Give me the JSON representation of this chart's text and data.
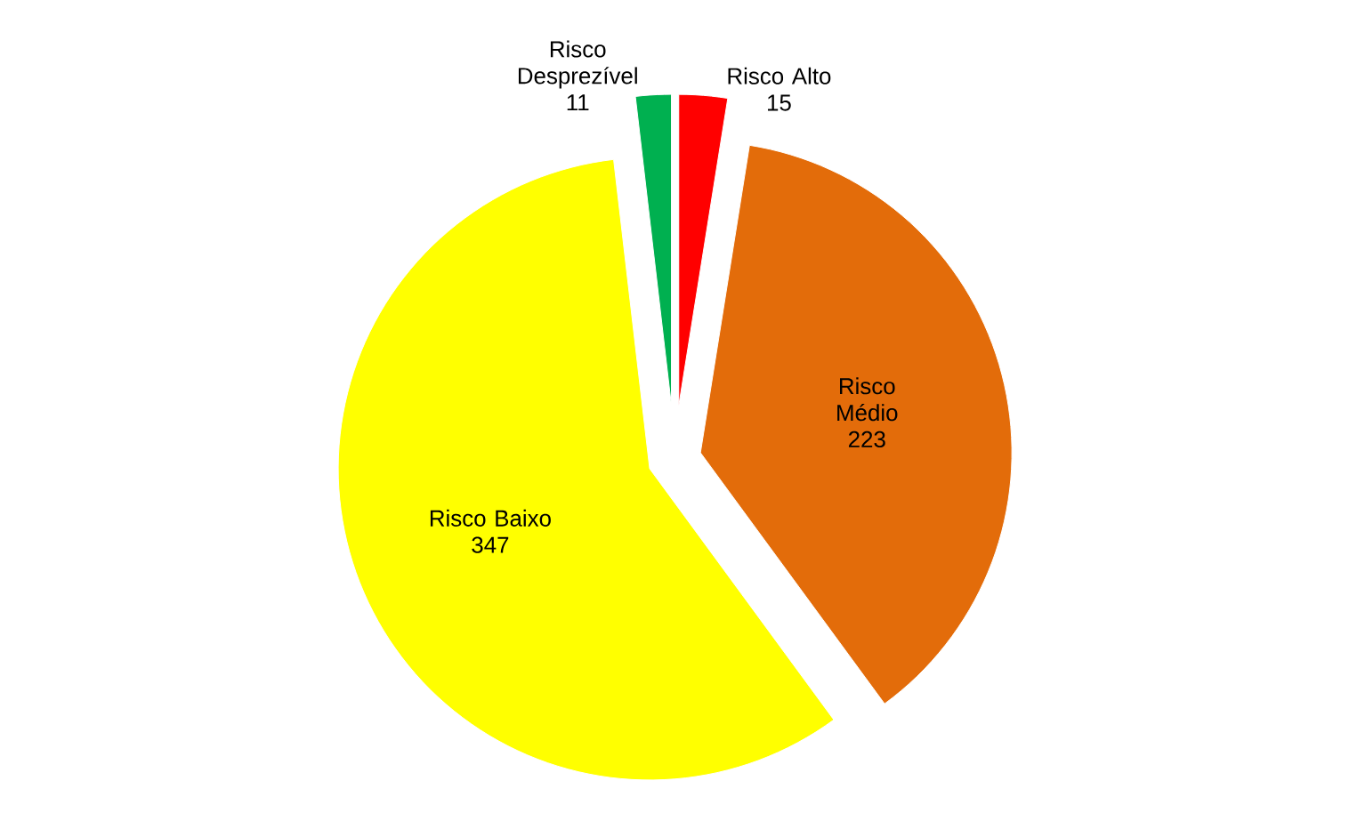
{
  "chart_data": {
    "type": "pie",
    "categories": [
      "Risco Alto",
      "Risco Médio",
      "Risco Baixo",
      "Risco Desprezível"
    ],
    "values": [
      15,
      223,
      347,
      11
    ],
    "colors": [
      "#ff0000",
      "#e36c0a",
      "#ffff00",
      "#00b050"
    ],
    "data_labels": true
  }
}
